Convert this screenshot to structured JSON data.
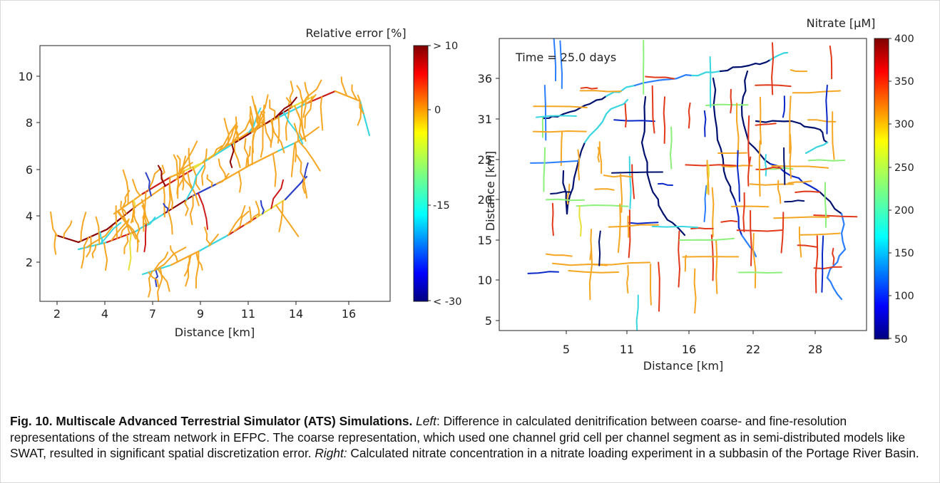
{
  "left_panel": {
    "xlabel": "Distance [km]",
    "colorbar_title": "Relative error [%]",
    "colorbar_ticks": [
      "> 10",
      "0",
      "-15",
      "< -30"
    ],
    "xticks": [
      "2",
      "4",
      "7",
      "9",
      "11",
      "14",
      "16"
    ],
    "yticks": [
      "2",
      "4",
      "6",
      "8",
      "10"
    ]
  },
  "right_panel": {
    "xlabel": "Distance [km]",
    "ylabel": "Distance [km]",
    "annotation": "Time = 25.0 days",
    "colorbar_title": "Nitrate [μM]",
    "colorbar_ticks": [
      "400",
      "350",
      "300",
      "250",
      "200",
      "150",
      "100",
      "50"
    ],
    "xticks": [
      "5",
      "11",
      "16",
      "22",
      "28"
    ],
    "yticks": [
      "5",
      "10",
      "15",
      "20",
      "25",
      "31",
      "36"
    ]
  },
  "chart_data": [
    {
      "type": "other",
      "xlabel": "Distance [km]",
      "xlim": [
        1.4,
        18.4
      ],
      "ylim": [
        0.5,
        11.3
      ],
      "colorbar": {
        "label": "Relative error [%]",
        "range": [
          -30,
          10
        ],
        "ticks": [
          "> 10",
          "0",
          "-15",
          "< -30"
        ]
      }
    },
    {
      "type": "other",
      "xlabel": "Distance [km]",
      "ylabel": "Distance [km]",
      "xlim": [
        1.4,
        33.6
      ],
      "ylim": [
        3.5,
        39.5
      ],
      "annotations": [
        "Time = 25.0 days"
      ],
      "colorbar": {
        "label": "Nitrate [μM]",
        "range": [
          50,
          400
        ],
        "ticks": [
          "400",
          "350",
          "300",
          "250",
          "200",
          "150",
          "100",
          "50"
        ]
      }
    }
  ],
  "caption": {
    "label": "Fig. 10. Multiscale Advanced Terrestrial Simulator (ATS) Simulations.",
    "left_word": "Left",
    "left_text": ": Difference in calculated denitrification between coarse- and fine-resolution representations of the stream network in EFPC. The coarse representation, which used one channel grid cell per channel segment as in semi-distributed models like SWAT, resulted in significant spatial discretization error.",
    "right_word": "Right:",
    "right_text": " Calculated nitrate concentration in a nitrate loading experiment in a subbasin of the Portage River Basin."
  },
  "colors": {
    "jet": [
      "#00007f",
      "#0000ff",
      "#007fff",
      "#00ffff",
      "#7fff7f",
      "#ffff00",
      "#ff7f00",
      "#ff0000",
      "#7f0000"
    ],
    "orange": "#f5a623",
    "dark_red": "#8b0000",
    "navy": "#00106e"
  }
}
